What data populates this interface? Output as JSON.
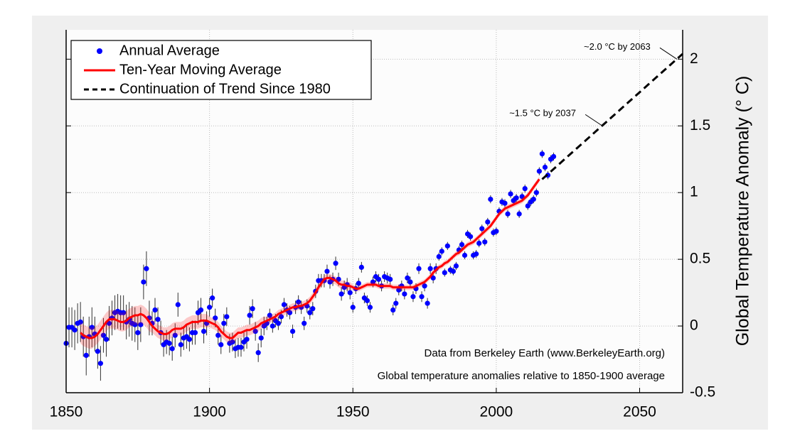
{
  "chart_data": {
    "type": "scatter",
    "y_label": "Global Temperature Anomaly (° C)",
    "xlim": [
      1850,
      2065
    ],
    "ylim": [
      -0.5,
      2.22
    ],
    "xticks": [
      1850,
      1900,
      1950,
      2000,
      2050
    ],
    "yticks": [
      -0.5,
      0,
      0.5,
      1,
      1.5,
      2
    ],
    "grid": true,
    "legend": "upper left",
    "series": [
      {
        "name": "Annual Average",
        "color": "#0000ff",
        "style": "points",
        "x": [
          1850,
          1851,
          1852,
          1853,
          1854,
          1855,
          1856,
          1857,
          1858,
          1859,
          1860,
          1861,
          1862,
          1863,
          1864,
          1865,
          1866,
          1867,
          1868,
          1869,
          1870,
          1871,
          1872,
          1873,
          1874,
          1875,
          1876,
          1877,
          1878,
          1879,
          1880,
          1881,
          1882,
          1883,
          1884,
          1885,
          1886,
          1887,
          1888,
          1889,
          1890,
          1891,
          1892,
          1893,
          1894,
          1895,
          1896,
          1897,
          1898,
          1899,
          1900,
          1901,
          1902,
          1903,
          1904,
          1905,
          1906,
          1907,
          1908,
          1909,
          1910,
          1911,
          1912,
          1913,
          1914,
          1915,
          1916,
          1917,
          1918,
          1919,
          1920,
          1921,
          1922,
          1923,
          1924,
          1925,
          1926,
          1927,
          1928,
          1929,
          1930,
          1931,
          1932,
          1933,
          1934,
          1935,
          1936,
          1937,
          1938,
          1939,
          1940,
          1941,
          1942,
          1943,
          1944,
          1945,
          1946,
          1947,
          1948,
          1949,
          1950,
          1951,
          1952,
          1953,
          1954,
          1955,
          1956,
          1957,
          1958,
          1959,
          1960,
          1961,
          1962,
          1963,
          1964,
          1965,
          1966,
          1967,
          1968,
          1969,
          1970,
          1971,
          1972,
          1973,
          1974,
          1975,
          1976,
          1977,
          1978,
          1979,
          1980,
          1981,
          1982,
          1983,
          1984,
          1985,
          1986,
          1987,
          1988,
          1989,
          1990,
          1991,
          1992,
          1993,
          1994,
          1995,
          1996,
          1997,
          1998,
          1999,
          2000,
          2001,
          2002,
          2003,
          2004,
          2005,
          2006,
          2007,
          2008,
          2009,
          2010,
          2011,
          2012,
          2013,
          2014,
          2015,
          2016,
          2017,
          2018,
          2019,
          2020
        ],
        "values": [
          -0.13,
          -0.01,
          -0.01,
          -0.03,
          0.02,
          0.03,
          -0.08,
          -0.22,
          -0.08,
          -0.01,
          -0.06,
          -0.19,
          -0.28,
          -0.07,
          -0.1,
          0.02,
          0.06,
          0.1,
          0.11,
          0.1,
          0.1,
          0.03,
          0.05,
          0.02,
          0.01,
          -0.05,
          0.01,
          0.33,
          0.43,
          0.06,
          0.02,
          0.12,
          0.05,
          -0.05,
          -0.14,
          -0.12,
          -0.13,
          -0.17,
          -0.07,
          0.16,
          -0.14,
          -0.09,
          -0.08,
          -0.1,
          -0.05,
          -0.05,
          0.1,
          0.12,
          -0.04,
          0.02,
          0.14,
          0.21,
          0.06,
          -0.07,
          -0.14,
          0.02,
          0.07,
          -0.13,
          -0.12,
          -0.17,
          -0.16,
          -0.16,
          -0.12,
          -0.1,
          0.08,
          0.13,
          -0.04,
          -0.2,
          -0.09,
          0.0,
          0.02,
          0.08,
          0.0,
          0.04,
          0.02,
          0.07,
          0.16,
          0.12,
          0.1,
          -0.04,
          0.14,
          0.18,
          0.14,
          0.02,
          0.15,
          0.1,
          0.13,
          0.26,
          0.34,
          0.34,
          0.34,
          0.41,
          0.33,
          0.35,
          0.47,
          0.35,
          0.24,
          0.29,
          0.31,
          0.25,
          0.14,
          0.28,
          0.32,
          0.44,
          0.21,
          0.19,
          0.14,
          0.33,
          0.37,
          0.35,
          0.3,
          0.37,
          0.36,
          0.35,
          0.12,
          0.17,
          0.27,
          0.3,
          0.24,
          0.36,
          0.33,
          0.22,
          0.28,
          0.43,
          0.22,
          0.3,
          0.17,
          0.43,
          0.36,
          0.43,
          0.52,
          0.56,
          0.4,
          0.6,
          0.42,
          0.41,
          0.45,
          0.57,
          0.61,
          0.53,
          0.69,
          0.67,
          0.53,
          0.54,
          0.62,
          0.73,
          0.63,
          0.78,
          0.95,
          0.7,
          0.71,
          0.86,
          0.93,
          0.92,
          0.84,
          0.99,
          0.94,
          0.96,
          0.84,
          0.97,
          1.03,
          0.9,
          0.93,
          0.95,
          1.0,
          1.16,
          1.29,
          1.19,
          1.13,
          1.25,
          1.27
        ],
        "errors": [
          0.15,
          0.15,
          0.15,
          0.15,
          0.15,
          0.15,
          0.15,
          0.15,
          0.15,
          0.15,
          0.13,
          0.13,
          0.13,
          0.13,
          0.13,
          0.13,
          0.13,
          0.13,
          0.13,
          0.13,
          0.13,
          0.13,
          0.13,
          0.13,
          0.13,
          0.13,
          0.13,
          0.13,
          0.13,
          0.13,
          0.09,
          0.09,
          0.09,
          0.09,
          0.09,
          0.09,
          0.09,
          0.09,
          0.09,
          0.09,
          0.09,
          0.09,
          0.09,
          0.09,
          0.09,
          0.09,
          0.09,
          0.09,
          0.09,
          0.09,
          0.07,
          0.07,
          0.07,
          0.07,
          0.07,
          0.07,
          0.07,
          0.07,
          0.07,
          0.07,
          0.07,
          0.07,
          0.07,
          0.07,
          0.07,
          0.07,
          0.07,
          0.07,
          0.07,
          0.07,
          0.05,
          0.05,
          0.05,
          0.05,
          0.05,
          0.05,
          0.05,
          0.05,
          0.05,
          0.05,
          0.05,
          0.05,
          0.05,
          0.05,
          0.05,
          0.05,
          0.05,
          0.05,
          0.05,
          0.05,
          0.05,
          0.05,
          0.05,
          0.05,
          0.05,
          0.05,
          0.05,
          0.05,
          0.05,
          0.05,
          0.04,
          0.04,
          0.04,
          0.04,
          0.04,
          0.04,
          0.04,
          0.04,
          0.04,
          0.04,
          0.04,
          0.04,
          0.04,
          0.04,
          0.04,
          0.04,
          0.04,
          0.04,
          0.04,
          0.04,
          0.04,
          0.04,
          0.04,
          0.04,
          0.04,
          0.04,
          0.04,
          0.04,
          0.04,
          0.04,
          0.03,
          0.03,
          0.03,
          0.03,
          0.03,
          0.03,
          0.03,
          0.03,
          0.03,
          0.03,
          0.03,
          0.03,
          0.03,
          0.03,
          0.03,
          0.03,
          0.03,
          0.03,
          0.03,
          0.03,
          0.03,
          0.03,
          0.03,
          0.03,
          0.03,
          0.03,
          0.03,
          0.03,
          0.03,
          0.03,
          0.03,
          0.03,
          0.03,
          0.03,
          0.03,
          0.03,
          0.03,
          0.03,
          0.03,
          0.03,
          0.03
        ]
      },
      {
        "name": "Ten-Year Moving Average",
        "color": "#ff0000",
        "style": "line",
        "x": [
          1855,
          1856,
          1857,
          1858,
          1859,
          1860,
          1861,
          1862,
          1863,
          1864,
          1865,
          1866,
          1867,
          1868,
          1869,
          1870,
          1871,
          1872,
          1873,
          1874,
          1875,
          1876,
          1877,
          1878,
          1879,
          1880,
          1881,
          1882,
          1883,
          1884,
          1885,
          1886,
          1887,
          1888,
          1889,
          1890,
          1891,
          1892,
          1893,
          1894,
          1895,
          1896,
          1897,
          1898,
          1899,
          1900,
          1901,
          1902,
          1903,
          1904,
          1905,
          1906,
          1907,
          1908,
          1909,
          1910,
          1911,
          1912,
          1913,
          1914,
          1915,
          1916,
          1917,
          1918,
          1919,
          1920,
          1921,
          1922,
          1923,
          1924,
          1925,
          1926,
          1927,
          1928,
          1929,
          1930,
          1931,
          1932,
          1933,
          1934,
          1935,
          1936,
          1937,
          1938,
          1939,
          1940,
          1941,
          1942,
          1943,
          1944,
          1945,
          1946,
          1947,
          1948,
          1949,
          1950,
          1951,
          1952,
          1953,
          1954,
          1955,
          1956,
          1957,
          1958,
          1959,
          1960,
          1961,
          1962,
          1963,
          1964,
          1965,
          1966,
          1967,
          1968,
          1969,
          1970,
          1971,
          1972,
          1973,
          1974,
          1975,
          1976,
          1977,
          1978,
          1979,
          1980,
          1981,
          1982,
          1983,
          1984,
          1985,
          1986,
          1987,
          1988,
          1989,
          1990,
          1991,
          1992,
          1993,
          1994,
          1995,
          1996,
          1997,
          1998,
          1999,
          2000,
          2001,
          2002,
          2003,
          2004,
          2005,
          2006,
          2007,
          2008,
          2009,
          2010,
          2011,
          2012,
          2013,
          2014,
          2015
        ],
        "values": [
          -0.05,
          -0.07,
          -0.08,
          -0.09,
          -0.09,
          -0.08,
          -0.06,
          -0.03,
          0.0,
          0.03,
          0.05,
          0.05,
          0.05,
          0.04,
          0.03,
          0.03,
          0.04,
          0.06,
          0.07,
          0.08,
          0.08,
          0.09,
          0.08,
          0.06,
          0.03,
          0.0,
          -0.02,
          -0.04,
          -0.05,
          -0.06,
          -0.06,
          -0.05,
          -0.03,
          -0.02,
          -0.02,
          -0.02,
          -0.01,
          0.01,
          0.02,
          0.03,
          0.03,
          0.03,
          0.04,
          0.04,
          0.04,
          0.03,
          0.02,
          0.01,
          -0.01,
          -0.04,
          -0.06,
          -0.08,
          -0.09,
          -0.09,
          -0.07,
          -0.05,
          -0.05,
          -0.04,
          -0.03,
          -0.03,
          -0.02,
          -0.01,
          0.0,
          0.02,
          0.03,
          0.04,
          0.05,
          0.06,
          0.07,
          0.09,
          0.1,
          0.11,
          0.12,
          0.13,
          0.14,
          0.14,
          0.15,
          0.15,
          0.16,
          0.17,
          0.19,
          0.22,
          0.25,
          0.29,
          0.32,
          0.35,
          0.36,
          0.36,
          0.35,
          0.34,
          0.32,
          0.31,
          0.31,
          0.3,
          0.3,
          0.29,
          0.28,
          0.28,
          0.29,
          0.3,
          0.31,
          0.31,
          0.31,
          0.31,
          0.3,
          0.3,
          0.3,
          0.3,
          0.3,
          0.29,
          0.29,
          0.29,
          0.29,
          0.29,
          0.29,
          0.29,
          0.29,
          0.3,
          0.31,
          0.32,
          0.33,
          0.35,
          0.37,
          0.4,
          0.42,
          0.44,
          0.45,
          0.47,
          0.48,
          0.5,
          0.52,
          0.54,
          0.55,
          0.57,
          0.59,
          0.61,
          0.62,
          0.63,
          0.65,
          0.67,
          0.69,
          0.71,
          0.73,
          0.75,
          0.78,
          0.81,
          0.84,
          0.86,
          0.88,
          0.89,
          0.9,
          0.91,
          0.92,
          0.93,
          0.94,
          0.96,
          0.98,
          1.01,
          1.04,
          1.07,
          1.1
        ],
        "uncertainty": [
          0.08,
          0.08,
          0.08,
          0.08,
          0.08,
          0.07,
          0.07,
          0.07,
          0.07,
          0.07,
          0.07,
          0.07,
          0.07,
          0.07,
          0.07,
          0.07,
          0.07,
          0.07,
          0.07,
          0.07,
          0.07,
          0.07,
          0.07,
          0.07,
          0.07,
          0.05,
          0.05,
          0.05,
          0.05,
          0.05,
          0.05,
          0.05,
          0.05,
          0.05,
          0.05,
          0.05,
          0.05,
          0.05,
          0.05,
          0.05,
          0.05,
          0.05,
          0.05,
          0.05,
          0.05,
          0.04,
          0.04,
          0.04,
          0.04,
          0.04,
          0.04,
          0.04,
          0.04,
          0.04,
          0.04,
          0.04,
          0.04,
          0.04,
          0.04,
          0.04,
          0.04,
          0.04,
          0.04,
          0.04,
          0.04,
          0.03,
          0.03,
          0.03,
          0.03,
          0.03,
          0.03,
          0.03,
          0.03,
          0.03,
          0.03,
          0.03,
          0.03,
          0.03,
          0.03,
          0.03,
          0.03,
          0.03,
          0.03,
          0.03,
          0.03,
          0.03,
          0.03,
          0.03,
          0.03,
          0.03,
          0.03,
          0.03,
          0.03,
          0.03,
          0.03,
          0.02,
          0.02,
          0.02,
          0.02,
          0.02,
          0.02,
          0.02,
          0.02,
          0.02,
          0.02,
          0.02,
          0.02,
          0.02,
          0.02,
          0.02,
          0.02,
          0.02,
          0.02,
          0.02,
          0.02,
          0.02,
          0.02,
          0.02,
          0.02,
          0.02,
          0.02,
          0.02,
          0.02,
          0.02,
          0.02,
          0.02,
          0.02,
          0.02,
          0.02,
          0.02,
          0.02,
          0.02,
          0.02,
          0.02,
          0.02,
          0.02,
          0.02,
          0.02,
          0.02,
          0.02,
          0.02,
          0.02,
          0.02,
          0.02,
          0.02,
          0.02,
          0.02,
          0.02,
          0.02,
          0.02,
          0.02,
          0.02,
          0.02,
          0.02,
          0.02,
          0.02,
          0.02,
          0.02,
          0.02,
          0.02,
          0.02,
          0.02
        ]
      },
      {
        "name": "Continuation of Trend Since 1980",
        "color": "#000000",
        "style": "dashed",
        "x": [
          2016,
          2065
        ],
        "values": [
          1.1,
          2.04
        ]
      }
    ],
    "annotations": [
      {
        "text": "~1.5 °C by 2037",
        "x": 2037,
        "y": 1.5
      },
      {
        "text": "~2.0 °C by 2063",
        "x": 2063,
        "y": 2.0
      }
    ],
    "notes": [
      "Data from Berkeley Earth (www.BerkeleyEarth.org)",
      "Global temperature anomalies relative to 1850-1900 average"
    ]
  }
}
